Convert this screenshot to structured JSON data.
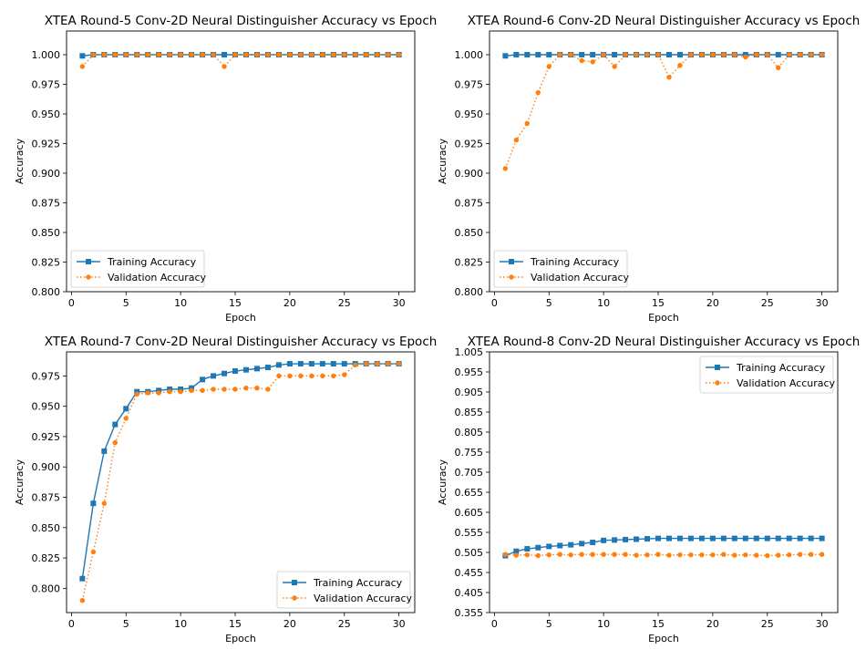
{
  "chart_data": [
    {
      "type": "line",
      "title": "XTEA Round-5 Conv-2D Neural Distinguisher Accuracy vs Epoch",
      "xlabel": "Epoch",
      "ylabel": "Accuracy",
      "xlim": [
        -0.45,
        31.45
      ],
      "ylim": [
        0.8,
        1.02
      ],
      "xticks": [
        0,
        5,
        10,
        15,
        20,
        25,
        30
      ],
      "yticks": [
        0.8,
        0.825,
        0.85,
        0.875,
        0.9,
        0.925,
        0.95,
        0.975,
        1.0
      ],
      "ytick_decimals": 3,
      "legend": "lower-left",
      "series": [
        {
          "name": "Training Accuracy",
          "style": "solid",
          "marker": "square",
          "color": "#1f77b4",
          "x": [
            1,
            2,
            3,
            4,
            5,
            6,
            7,
            8,
            9,
            10,
            11,
            12,
            13,
            14,
            15,
            16,
            17,
            18,
            19,
            20,
            21,
            22,
            23,
            24,
            25,
            26,
            27,
            28,
            29,
            30
          ],
          "values": [
            0.999,
            1.0,
            1.0,
            1.0,
            1.0,
            1.0,
            1.0,
            1.0,
            1.0,
            1.0,
            1.0,
            1.0,
            1.0,
            1.0,
            1.0,
            1.0,
            1.0,
            1.0,
            1.0,
            1.0,
            1.0,
            1.0,
            1.0,
            1.0,
            1.0,
            1.0,
            1.0,
            1.0,
            1.0,
            1.0
          ]
        },
        {
          "name": "Validation Accuracy",
          "style": "dotted",
          "marker": "circle",
          "color": "#ff7f0e",
          "x": [
            1,
            2,
            3,
            4,
            5,
            6,
            7,
            8,
            9,
            10,
            11,
            12,
            13,
            14,
            15,
            16,
            17,
            18,
            19,
            20,
            21,
            22,
            23,
            24,
            25,
            26,
            27,
            28,
            29,
            30
          ],
          "values": [
            0.99,
            1.0,
            1.0,
            1.0,
            1.0,
            1.0,
            1.0,
            1.0,
            1.0,
            1.0,
            1.0,
            1.0,
            1.0,
            0.99,
            1.0,
            1.0,
            1.0,
            1.0,
            1.0,
            1.0,
            1.0,
            1.0,
            1.0,
            1.0,
            1.0,
            1.0,
            1.0,
            1.0,
            1.0,
            1.0
          ]
        }
      ]
    },
    {
      "type": "line",
      "title": "XTEA Round-6 Conv-2D Neural Distinguisher Accuracy vs Epoch",
      "xlabel": "Epoch",
      "ylabel": "Accuracy",
      "xlim": [
        -0.45,
        31.45
      ],
      "ylim": [
        0.8,
        1.02
      ],
      "xticks": [
        0,
        5,
        10,
        15,
        20,
        25,
        30
      ],
      "yticks": [
        0.8,
        0.825,
        0.85,
        0.875,
        0.9,
        0.925,
        0.95,
        0.975,
        1.0
      ],
      "ytick_decimals": 3,
      "legend": "lower-left",
      "series": [
        {
          "name": "Training Accuracy",
          "style": "solid",
          "marker": "square",
          "color": "#1f77b4",
          "x": [
            1,
            2,
            3,
            4,
            5,
            6,
            7,
            8,
            9,
            10,
            11,
            12,
            13,
            14,
            15,
            16,
            17,
            18,
            19,
            20,
            21,
            22,
            23,
            24,
            25,
            26,
            27,
            28,
            29,
            30
          ],
          "values": [
            0.999,
            1.0,
            1.0,
            1.0,
            1.0,
            1.0,
            1.0,
            1.0,
            1.0,
            1.0,
            1.0,
            1.0,
            1.0,
            1.0,
            1.0,
            1.0,
            1.0,
            1.0,
            1.0,
            1.0,
            1.0,
            1.0,
            1.0,
            1.0,
            1.0,
            1.0,
            1.0,
            1.0,
            1.0,
            1.0
          ]
        },
        {
          "name": "Validation Accuracy",
          "style": "dotted",
          "marker": "circle",
          "color": "#ff7f0e",
          "x": [
            1,
            2,
            3,
            4,
            5,
            6,
            7,
            8,
            9,
            10,
            11,
            12,
            13,
            14,
            15,
            16,
            17,
            18,
            19,
            20,
            21,
            22,
            23,
            24,
            25,
            26,
            27,
            28,
            29,
            30
          ],
          "values": [
            0.904,
            0.928,
            0.942,
            0.968,
            0.99,
            1.0,
            1.0,
            0.995,
            0.994,
            1.0,
            0.99,
            1.0,
            1.0,
            1.0,
            1.0,
            0.981,
            0.991,
            1.0,
            1.0,
            1.0,
            1.0,
            1.0,
            0.998,
            1.0,
            1.0,
            0.989,
            1.0,
            1.0,
            1.0,
            1.0
          ]
        }
      ]
    },
    {
      "type": "line",
      "title": "XTEA Round-7 Conv-2D Neural Distinguisher Accuracy vs Epoch",
      "xlabel": "Epoch",
      "ylabel": "Accuracy",
      "xlim": [
        -0.45,
        31.45
      ],
      "ylim": [
        0.78,
        0.9948
      ],
      "xticks": [
        0,
        5,
        10,
        15,
        20,
        25,
        30
      ],
      "yticks": [
        0.8,
        0.825,
        0.85,
        0.875,
        0.9,
        0.925,
        0.95,
        0.975
      ],
      "ytick_decimals": 3,
      "legend": "lower-right",
      "series": [
        {
          "name": "Training Accuracy",
          "style": "solid",
          "marker": "square",
          "color": "#1f77b4",
          "x": [
            1,
            2,
            3,
            4,
            5,
            6,
            7,
            8,
            9,
            10,
            11,
            12,
            13,
            14,
            15,
            16,
            17,
            18,
            19,
            20,
            21,
            22,
            23,
            24,
            25,
            26,
            27,
            28,
            29,
            30
          ],
          "values": [
            0.808,
            0.87,
            0.913,
            0.935,
            0.948,
            0.962,
            0.962,
            0.963,
            0.964,
            0.964,
            0.965,
            0.972,
            0.975,
            0.977,
            0.979,
            0.98,
            0.981,
            0.982,
            0.984,
            0.985,
            0.985,
            0.985,
            0.985,
            0.985,
            0.985,
            0.985,
            0.985,
            0.985,
            0.985,
            0.985
          ]
        },
        {
          "name": "Validation Accuracy",
          "style": "dotted",
          "marker": "circle",
          "color": "#ff7f0e",
          "x": [
            1,
            2,
            3,
            4,
            5,
            6,
            7,
            8,
            9,
            10,
            11,
            12,
            13,
            14,
            15,
            16,
            17,
            18,
            19,
            20,
            21,
            22,
            23,
            24,
            25,
            26,
            27,
            28,
            29,
            30
          ],
          "values": [
            0.79,
            0.83,
            0.87,
            0.92,
            0.94,
            0.96,
            0.961,
            0.961,
            0.962,
            0.962,
            0.963,
            0.963,
            0.964,
            0.964,
            0.964,
            0.965,
            0.965,
            0.964,
            0.975,
            0.975,
            0.975,
            0.975,
            0.975,
            0.975,
            0.976,
            0.984,
            0.985,
            0.985,
            0.985,
            0.985
          ]
        }
      ]
    },
    {
      "type": "line",
      "title": "XTEA Round-8 Conv-2D Neural Distinguisher Accuracy vs Epoch",
      "xlabel": "Epoch",
      "ylabel": "Accuracy",
      "xlim": [
        -0.45,
        31.45
      ],
      "ylim": [
        0.355,
        1.005
      ],
      "xticks": [
        0,
        5,
        10,
        15,
        20,
        25,
        30
      ],
      "yticks": [
        0.355,
        0.405,
        0.455,
        0.505,
        0.555,
        0.605,
        0.655,
        0.705,
        0.755,
        0.805,
        0.855,
        0.905,
        0.955,
        1.005
      ],
      "ytick_decimals": 3,
      "legend": "upper-right",
      "series": [
        {
          "name": "Training Accuracy",
          "style": "solid",
          "marker": "square",
          "color": "#1f77b4",
          "x": [
            1,
            2,
            3,
            4,
            5,
            6,
            7,
            8,
            9,
            10,
            11,
            12,
            13,
            14,
            15,
            16,
            17,
            18,
            19,
            20,
            21,
            22,
            23,
            24,
            25,
            26,
            27,
            28,
            29,
            30
          ],
          "values": [
            0.497,
            0.508,
            0.514,
            0.517,
            0.52,
            0.522,
            0.524,
            0.527,
            0.53,
            0.535,
            0.536,
            0.537,
            0.538,
            0.539,
            0.54,
            0.54,
            0.54,
            0.54,
            0.54,
            0.54,
            0.54,
            0.54,
            0.54,
            0.54,
            0.54,
            0.54,
            0.54,
            0.54,
            0.54,
            0.54
          ]
        },
        {
          "name": "Validation Accuracy",
          "style": "dotted",
          "marker": "circle",
          "color": "#ff7f0e",
          "x": [
            1,
            2,
            3,
            4,
            5,
            6,
            7,
            8,
            9,
            10,
            11,
            12,
            13,
            14,
            15,
            16,
            17,
            18,
            19,
            20,
            21,
            22,
            23,
            24,
            25,
            26,
            27,
            28,
            29,
            30
          ],
          "values": [
            0.5,
            0.498,
            0.499,
            0.497,
            0.499,
            0.5,
            0.499,
            0.5,
            0.5,
            0.5,
            0.5,
            0.5,
            0.498,
            0.499,
            0.5,
            0.498,
            0.499,
            0.499,
            0.499,
            0.499,
            0.5,
            0.498,
            0.499,
            0.498,
            0.497,
            0.498,
            0.499,
            0.5,
            0.5,
            0.5
          ]
        }
      ]
    }
  ]
}
